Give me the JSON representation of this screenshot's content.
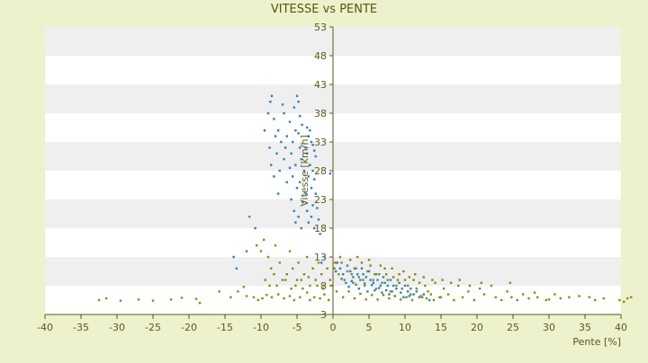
{
  "chart_data": {
    "type": "scatter",
    "title": "VITESSE vs PENTE",
    "xlabel": "Pente [%]",
    "ylabel": "Vitesse [km/h]",
    "xlim": [
      -40,
      40
    ],
    "ylim": [
      3,
      53
    ],
    "x_ticks": [
      -40,
      -35,
      -30,
      -25,
      -20,
      -15,
      -10,
      -5,
      0,
      5,
      10,
      15,
      20,
      25,
      30,
      35,
      40
    ],
    "y_ticks": [
      3,
      8,
      13,
      18,
      23,
      28,
      33,
      38,
      43,
      48,
      53
    ],
    "grid": "horizontal bands",
    "legend": "none",
    "colors": {
      "background": "#edf2cc",
      "plot_band_light": "#ffffff",
      "plot_band_dark": "#efefef",
      "series_blue": "#2a7fd4",
      "series_olive": "#8a8a10",
      "axis": "#5a5a1e"
    },
    "series": [
      {
        "color": "#2a7fd4",
        "points": [
          [
            -8.5,
            41
          ],
          [
            -5,
            41
          ],
          [
            -8.7,
            40
          ],
          [
            -4.8,
            40
          ],
          [
            -7,
            39.5
          ],
          [
            -5.4,
            39
          ],
          [
            -9,
            38
          ],
          [
            -6.8,
            38
          ],
          [
            -4.6,
            37.5
          ],
          [
            -8.2,
            37
          ],
          [
            -6,
            36.5
          ],
          [
            -4.3,
            36
          ],
          [
            -9.5,
            35
          ],
          [
            -7.6,
            35
          ],
          [
            -5.2,
            35
          ],
          [
            -3.6,
            35.5
          ],
          [
            -3.2,
            35
          ],
          [
            -8,
            34
          ],
          [
            -6.4,
            34
          ],
          [
            -4.8,
            34.5
          ],
          [
            -3.4,
            34
          ],
          [
            -7.2,
            33
          ],
          [
            -5.6,
            33
          ],
          [
            -3,
            33
          ],
          [
            -2.8,
            32.5
          ],
          [
            -8.8,
            32
          ],
          [
            -6.6,
            32
          ],
          [
            -4.6,
            32
          ],
          [
            -3.8,
            32
          ],
          [
            -2.6,
            31.5
          ],
          [
            -7.8,
            31
          ],
          [
            -5.8,
            31
          ],
          [
            -3.6,
            31
          ],
          [
            -6.8,
            30
          ],
          [
            -4.4,
            30
          ],
          [
            -2.4,
            30.5
          ],
          [
            -8.6,
            29
          ],
          [
            -5.2,
            29
          ],
          [
            -3.2,
            29
          ],
          [
            -7.4,
            28
          ],
          [
            -6,
            28.5
          ],
          [
            -4,
            28
          ],
          [
            -2.8,
            28
          ],
          [
            -0.4,
            27.5
          ],
          [
            -8.2,
            27
          ],
          [
            -5.6,
            27
          ],
          [
            -3.4,
            27
          ],
          [
            -6.4,
            26
          ],
          [
            -4.6,
            26
          ],
          [
            -2.6,
            26.5
          ],
          [
            -5,
            25
          ],
          [
            -3,
            25
          ],
          [
            -7.6,
            24
          ],
          [
            -3.8,
            24
          ],
          [
            -2.4,
            24
          ],
          [
            -5.8,
            23
          ],
          [
            -4.2,
            22.5
          ],
          [
            -2.8,
            22
          ],
          [
            -5.4,
            21
          ],
          [
            -3.6,
            21
          ],
          [
            -2.2,
            21.5
          ],
          [
            -4.8,
            20
          ],
          [
            -3,
            20
          ],
          [
            -5.2,
            19
          ],
          [
            -3.4,
            19
          ],
          [
            -2,
            19.5
          ],
          [
            -4.4,
            18
          ],
          [
            -2.6,
            18
          ],
          [
            -1.8,
            17
          ],
          [
            -10.8,
            18
          ],
          [
            -13.8,
            13
          ],
          [
            -13.4,
            11
          ],
          [
            -12,
            14
          ],
          [
            -1.2,
            13
          ],
          [
            -1.6,
            12
          ],
          [
            0.6,
            12
          ],
          [
            1,
            11
          ],
          [
            1.4,
            10
          ],
          [
            2,
            11.5
          ],
          [
            2.4,
            10.5
          ],
          [
            2.8,
            9.5
          ],
          [
            3,
            11
          ],
          [
            3.4,
            10
          ],
          [
            3.8,
            9
          ],
          [
            4,
            11
          ],
          [
            4.2,
            10
          ],
          [
            4.6,
            9.5
          ],
          [
            5,
            10.5
          ],
          [
            5.2,
            9
          ],
          [
            5.6,
            8.5
          ],
          [
            6,
            10
          ],
          [
            6.2,
            9
          ],
          [
            6.6,
            8
          ],
          [
            7,
            9.5
          ],
          [
            7.2,
            8.5
          ],
          [
            7.6,
            8
          ],
          [
            8,
            9
          ],
          [
            8.4,
            8
          ],
          [
            8.8,
            7.5
          ],
          [
            9.2,
            8.5
          ],
          [
            9.6,
            7.5
          ],
          [
            10,
            8
          ],
          [
            10.4,
            7
          ],
          [
            10.8,
            7.5
          ],
          [
            11.2,
            6.5
          ],
          [
            11.6,
            7
          ],
          [
            12,
            6
          ],
          [
            12.6,
            6.5
          ],
          [
            13.4,
            5.5
          ],
          [
            1.8,
            8.5
          ],
          [
            2.2,
            7.8
          ],
          [
            3.6,
            7.5
          ],
          [
            4.8,
            7
          ],
          [
            5.8,
            7.2
          ],
          [
            6.8,
            6.8
          ],
          [
            7.8,
            6.5
          ],
          [
            8.6,
            6.2
          ],
          [
            9.8,
            6
          ],
          [
            0.4,
            10.5
          ],
          [
            1.2,
            9.2
          ],
          [
            2.6,
            8.8
          ],
          [
            3.2,
            8.2
          ],
          [
            4.4,
            8.4
          ],
          [
            5.4,
            8.1
          ],
          [
            6.4,
            7.6
          ],
          [
            7.4,
            7.2
          ],
          [
            8.2,
            7
          ],
          [
            9.4,
            6.8
          ],
          [
            10.6,
            6.2
          ]
        ]
      },
      {
        "color": "#8a8a10",
        "points": [
          [
            -32.5,
            5.5
          ],
          [
            -31.5,
            5.8
          ],
          [
            -29.5,
            5.4
          ],
          [
            -27,
            5.6
          ],
          [
            -25,
            5.4
          ],
          [
            -22.5,
            5.6
          ],
          [
            -21,
            5.9
          ],
          [
            -19,
            5.7
          ],
          [
            -18.5,
            5
          ],
          [
            -15.8,
            7
          ],
          [
            -14.2,
            6
          ],
          [
            -13.2,
            7
          ],
          [
            -12.4,
            7.8
          ],
          [
            -12,
            6.2
          ],
          [
            -11,
            6
          ],
          [
            -10.4,
            5.5
          ],
          [
            -9.8,
            5.8
          ],
          [
            -9.2,
            6.4
          ],
          [
            -8.5,
            6
          ],
          [
            -7.6,
            6.5
          ],
          [
            -6.8,
            5.8
          ],
          [
            -6,
            6.2
          ],
          [
            -5.4,
            5.5
          ],
          [
            -4.6,
            6
          ],
          [
            -3.6,
            6.8
          ],
          [
            -3.2,
            5.5
          ],
          [
            -2.6,
            6
          ],
          [
            -1.8,
            5.8
          ],
          [
            -1.2,
            6.5
          ],
          [
            -0.6,
            5.5
          ],
          [
            -11.6,
            20
          ],
          [
            -10.6,
            15
          ],
          [
            -10,
            14
          ],
          [
            -9.6,
            16
          ],
          [
            -9,
            13
          ],
          [
            -8.6,
            11
          ],
          [
            -8,
            15
          ],
          [
            -7.4,
            12
          ],
          [
            -7,
            9
          ],
          [
            -6.4,
            10
          ],
          [
            -6,
            14
          ],
          [
            -5.6,
            11
          ],
          [
            -5.2,
            8
          ],
          [
            -4.8,
            12
          ],
          [
            -4.4,
            9
          ],
          [
            -4,
            10
          ],
          [
            -3.6,
            13
          ],
          [
            -3.2,
            8
          ],
          [
            -2.8,
            11
          ],
          [
            -2.4,
            9
          ],
          [
            -2,
            12
          ],
          [
            -1.6,
            10
          ],
          [
            -1.2,
            8
          ],
          [
            -0.8,
            11
          ],
          [
            -0.4,
            9
          ],
          [
            -9.4,
            9
          ],
          [
            -8.8,
            8
          ],
          [
            -8.2,
            10
          ],
          [
            -7.8,
            8
          ],
          [
            -6.6,
            9
          ],
          [
            -5.8,
            7.5
          ],
          [
            -5,
            9
          ],
          [
            -4.2,
            7.5
          ],
          [
            -3.4,
            9.5
          ],
          [
            -2.2,
            8
          ],
          [
            -1.4,
            7.5
          ],
          [
            -0.2,
            8
          ],
          [
            0.3,
            12
          ],
          [
            0.8,
            10
          ],
          [
            1.2,
            12
          ],
          [
            1.6,
            9
          ],
          [
            2,
            10.5
          ],
          [
            2.4,
            12.5
          ],
          [
            2.8,
            8.5
          ],
          [
            3.2,
            11
          ],
          [
            3.6,
            9.5
          ],
          [
            4,
            12
          ],
          [
            4.4,
            8
          ],
          [
            4.8,
            10.5
          ],
          [
            5.2,
            11.5
          ],
          [
            5.6,
            9
          ],
          [
            6,
            7.5
          ],
          [
            6.4,
            10
          ],
          [
            6.8,
            8.5
          ],
          [
            7.2,
            11
          ],
          [
            7.6,
            9
          ],
          [
            8,
            7
          ],
          [
            8.4,
            9.5
          ],
          [
            8.8,
            8
          ],
          [
            9.2,
            10
          ],
          [
            9.6,
            7.5
          ],
          [
            10,
            9
          ],
          [
            10.4,
            8
          ],
          [
            10.8,
            6.5
          ],
          [
            11.2,
            9
          ],
          [
            11.6,
            7.5
          ],
          [
            12,
            8.5
          ],
          [
            12.4,
            6
          ],
          [
            12.8,
            8
          ],
          [
            13.2,
            7
          ],
          [
            13.6,
            6.5
          ],
          [
            14.2,
            8.5
          ],
          [
            14.8,
            6
          ],
          [
            15.4,
            7.5
          ],
          [
            16,
            6.5
          ],
          [
            16.8,
            5.5
          ],
          [
            17.4,
            8
          ],
          [
            18,
            6
          ],
          [
            18.8,
            7
          ],
          [
            19.6,
            5.5
          ],
          [
            20.4,
            7.5
          ],
          [
            21,
            6.5
          ],
          [
            22,
            8
          ],
          [
            22.6,
            6
          ],
          [
            23.4,
            5.5
          ],
          [
            24.2,
            7
          ],
          [
            24.8,
            6
          ],
          [
            25.6,
            5.5
          ],
          [
            26.4,
            6.5
          ],
          [
            27.2,
            5.8
          ],
          [
            28.4,
            6
          ],
          [
            29.6,
            5.5
          ],
          [
            30.8,
            6.5
          ],
          [
            31.6,
            5.8
          ],
          [
            32.8,
            6
          ],
          [
            34.2,
            6.2
          ],
          [
            35.6,
            6
          ],
          [
            36.4,
            5.5
          ],
          [
            37.6,
            5.8
          ],
          [
            39.8,
            5.5
          ],
          [
            40.4,
            5.2
          ],
          [
            41.4,
            6
          ],
          [
            40.9,
            5.8
          ],
          [
            0.5,
            7
          ],
          [
            1.4,
            6
          ],
          [
            2.2,
            7
          ],
          [
            3,
            5.8
          ],
          [
            3.8,
            6.6
          ],
          [
            4.6,
            5.6
          ],
          [
            5.4,
            6.4
          ],
          [
            6.2,
            5.6
          ],
          [
            7,
            6.4
          ],
          [
            7.8,
            5.8
          ],
          [
            8.6,
            6.2
          ],
          [
            9.4,
            5.6
          ],
          [
            10.2,
            6
          ],
          [
            11,
            5.5
          ],
          [
            12.2,
            6.2
          ],
          [
            13,
            5.8
          ],
          [
            14,
            5.5
          ],
          [
            15,
            6
          ],
          [
            0.2,
            11
          ],
          [
            1,
            13
          ],
          [
            2.6,
            10
          ],
          [
            3.4,
            13
          ],
          [
            4.2,
            9
          ],
          [
            5,
            12.5
          ],
          [
            5.8,
            10
          ],
          [
            6.6,
            11.5
          ],
          [
            7.4,
            10
          ],
          [
            8.2,
            11
          ],
          [
            9,
            9
          ],
          [
            9.8,
            10.5
          ],
          [
            10.6,
            9.5
          ],
          [
            11.4,
            10
          ],
          [
            12.6,
            9.5
          ],
          [
            13.8,
            9
          ],
          [
            15.2,
            9
          ],
          [
            16.4,
            8.5
          ],
          [
            17.6,
            9
          ],
          [
            19,
            8
          ],
          [
            20.6,
            8.5
          ],
          [
            24.6,
            8.5
          ],
          [
            28,
            6.8
          ],
          [
            30,
            5.6
          ]
        ]
      }
    ]
  }
}
